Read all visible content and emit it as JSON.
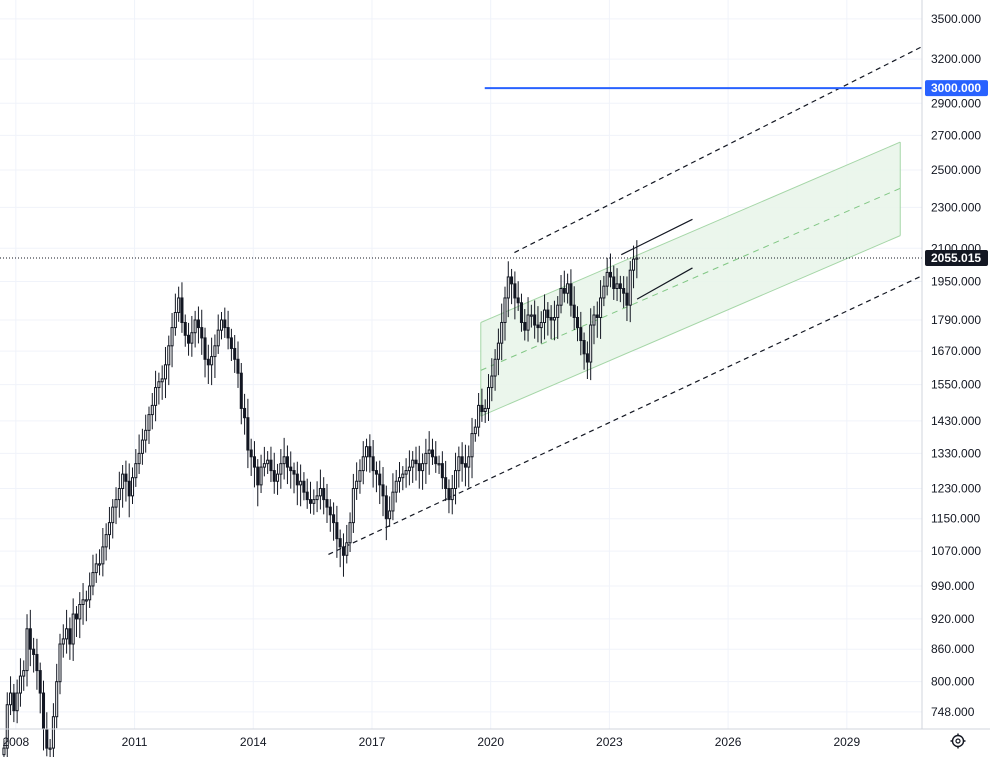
{
  "chart_data": {
    "type": "candlestick",
    "scale": "log",
    "grid": true,
    "x_ticks": [
      "2008",
      "2011",
      "2014",
      "2017",
      "2020",
      "2023",
      "2026",
      "2029"
    ],
    "y_ticks": [
      "3500.000",
      "3200.000",
      "2900.000",
      "2700.000",
      "2500.000",
      "2300.000",
      "2100.000",
      "1950.000",
      "1790.000",
      "1670.000",
      "1550.000",
      "1430.000",
      "1330.000",
      "1230.000",
      "1150.000",
      "1070.000",
      "990.000",
      "920.000",
      "860.000",
      "800.000",
      "748.000"
    ],
    "ylim": [
      720,
      3650
    ],
    "xlim": [
      2007.6,
      2030.9
    ],
    "current_price": 2055.015,
    "current_price_label": "2055.015",
    "horizontal_line": {
      "value": 3000,
      "label": "3000.000",
      "from_x": 2019.85,
      "color": "#2962ff"
    },
    "colors": {
      "up": "#ffffff",
      "down": "#131722",
      "wick": "#131722",
      "grid": "#f0f3fa",
      "channel_fill": "#e8f5e9",
      "channel_edge": "#a5d6a7"
    },
    "trend_lines": [
      {
        "name": "upper",
        "style": "dashed",
        "points": [
          [
            2020.6,
            2080
          ],
          [
            2030.9,
            3290
          ]
        ]
      },
      {
        "name": "lower",
        "style": "dashed",
        "points": [
          [
            2015.9,
            1062
          ],
          [
            2030.9,
            1975
          ]
        ]
      },
      {
        "name": "mini-upper",
        "style": "solid",
        "points": [
          [
            2023.3,
            2070
          ],
          [
            2025.1,
            2240
          ]
        ]
      },
      {
        "name": "mini-lower",
        "style": "solid",
        "points": [
          [
            2023.7,
            1875
          ],
          [
            2025.1,
            2010
          ]
        ]
      }
    ],
    "regression_channel": {
      "x_start": 2019.75,
      "x_end": 2030.35,
      "upper": [
        1780,
        2660
      ],
      "mid": [
        1600,
        2400
      ],
      "lower": [
        1445,
        2160
      ]
    },
    "series": [
      {
        "x_start": 2007.7,
        "x_step": 0.0833,
        "close": [
          690,
          760,
          780,
          750,
          780,
          810,
          820,
          900,
          860,
          850,
          820,
          780,
          720,
          690,
          690,
          740,
          800,
          870,
          880,
          900,
          870,
          930,
          920,
          950,
          960,
          960,
          990,
          1020,
          1040,
          1040,
          1080,
          1110,
          1140,
          1180,
          1200,
          1230,
          1270,
          1250,
          1210,
          1260,
          1300,
          1330,
          1370,
          1400,
          1450,
          1480,
          1540,
          1560,
          1570,
          1620,
          1690,
          1760,
          1820,
          1880,
          1780,
          1730,
          1700,
          1740,
          1790,
          1760,
          1720,
          1640,
          1620,
          1650,
          1690,
          1750,
          1790,
          1760,
          1720,
          1680,
          1640,
          1590,
          1470,
          1440,
          1340,
          1320,
          1290,
          1240,
          1290,
          1300,
          1310,
          1280,
          1250,
          1270,
          1300,
          1320,
          1290,
          1280,
          1270,
          1240,
          1250,
          1220,
          1200,
          1190,
          1200,
          1210,
          1230,
          1200,
          1180,
          1160,
          1140,
          1100,
          1080,
          1060,
          1090,
          1140,
          1230,
          1250,
          1280,
          1320,
          1350,
          1320,
          1280,
          1270,
          1240,
          1210,
          1150,
          1170,
          1220,
          1250,
          1260,
          1270,
          1280,
          1290,
          1310,
          1300,
          1280,
          1300,
          1330,
          1340,
          1320,
          1300,
          1300,
          1260,
          1230,
          1200,
          1230,
          1280,
          1320,
          1300,
          1290,
          1320,
          1390,
          1410,
          1480,
          1460,
          1470,
          1540,
          1580,
          1640,
          1700,
          1780,
          1880,
          1970,
          1940,
          1880,
          1860,
          1780,
          1750,
          1810,
          1810,
          1770,
          1760,
          1780,
          1830,
          1800,
          1790,
          1800,
          1850,
          1920,
          1900,
          1940,
          1850,
          1800,
          1760,
          1710,
          1660,
          1630,
          1770,
          1810,
          1800,
          1880,
          1930,
          1990,
          1970,
          1920,
          1940,
          1920,
          1900,
          1850,
          2000,
          2050,
          2055
        ],
        "open": [
          680,
          690,
          760,
          780,
          750,
          780,
          810,
          820,
          900,
          860,
          850,
          820,
          780,
          720,
          690,
          690,
          740,
          800,
          870,
          880,
          900,
          870,
          930,
          920,
          950,
          960,
          960,
          990,
          1020,
          1040,
          1040,
          1080,
          1110,
          1140,
          1180,
          1200,
          1230,
          1270,
          1250,
          1210,
          1260,
          1300,
          1330,
          1370,
          1400,
          1450,
          1480,
          1540,
          1560,
          1570,
          1620,
          1690,
          1760,
          1820,
          1880,
          1780,
          1730,
          1700,
          1740,
          1790,
          1760,
          1720,
          1640,
          1620,
          1650,
          1690,
          1750,
          1790,
          1760,
          1720,
          1680,
          1640,
          1590,
          1470,
          1440,
          1340,
          1320,
          1290,
          1240,
          1290,
          1300,
          1310,
          1280,
          1250,
          1270,
          1300,
          1320,
          1290,
          1280,
          1270,
          1240,
          1250,
          1220,
          1200,
          1190,
          1200,
          1210,
          1230,
          1200,
          1180,
          1160,
          1140,
          1100,
          1080,
          1060,
          1090,
          1140,
          1230,
          1250,
          1280,
          1320,
          1350,
          1320,
          1280,
          1270,
          1240,
          1210,
          1150,
          1170,
          1220,
          1250,
          1260,
          1270,
          1280,
          1290,
          1310,
          1300,
          1280,
          1300,
          1330,
          1340,
          1320,
          1300,
          1300,
          1260,
          1230,
          1200,
          1230,
          1280,
          1320,
          1300,
          1290,
          1320,
          1390,
          1410,
          1480,
          1460,
          1470,
          1540,
          1580,
          1640,
          1700,
          1780,
          1880,
          1970,
          1940,
          1880,
          1860,
          1780,
          1750,
          1810,
          1810,
          1770,
          1760,
          1780,
          1830,
          1800,
          1790,
          1800,
          1850,
          1920,
          1900,
          1940,
          1850,
          1800,
          1760,
          1710,
          1660,
          1630,
          1770,
          1810,
          1800,
          1880,
          1930,
          1990,
          1970,
          1920,
          1940,
          1920,
          1900,
          1850,
          2000,
          2050
        ]
      }
    ]
  }
}
